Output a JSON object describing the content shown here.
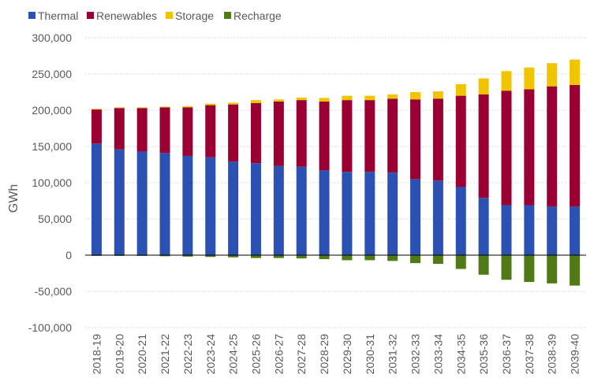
{
  "chart_data": {
    "type": "bar",
    "stacked": true,
    "ylabel": "GWh",
    "ylim": [
      -100000,
      300000
    ],
    "yticks": [
      300000,
      250000,
      200000,
      150000,
      100000,
      50000,
      0,
      -50000,
      -100000
    ],
    "ytick_labels": [
      "300,000",
      "250,000",
      "200,000",
      "150,000",
      "100,000",
      "50,000",
      "0",
      "-50,000",
      "-100,000"
    ],
    "grid": true,
    "legend_position": "top-left",
    "categories": [
      "2018-19",
      "2019-20",
      "2020-21",
      "2021-22",
      "2022-23",
      "2023-24",
      "2024-25",
      "2025-26",
      "2026-27",
      "2027-28",
      "2028-29",
      "2029-30",
      "2030-31",
      "2031-32",
      "2032-33",
      "2033-34",
      "2034-35",
      "2035-36",
      "2036-37",
      "2037-38",
      "2038-39",
      "2039-40"
    ],
    "series": [
      {
        "name": "Thermal",
        "color": "#2b52b3",
        "values": [
          154000,
          146000,
          143000,
          141000,
          137000,
          135000,
          129000,
          127000,
          123000,
          122000,
          117000,
          115000,
          115000,
          114000,
          105000,
          103000,
          94000,
          79000,
          69000,
          69000,
          67000,
          67000
        ]
      },
      {
        "name": "Renewables",
        "color": "#9a0032",
        "values": [
          47000,
          57000,
          60000,
          63000,
          67000,
          72000,
          79000,
          83000,
          89000,
          92000,
          95000,
          99000,
          99000,
          102000,
          110000,
          113000,
          126000,
          143000,
          158000,
          160000,
          166000,
          168000
        ]
      },
      {
        "name": "Storage",
        "color": "#f1c400",
        "values": [
          1000,
          1000,
          1000,
          1000,
          1500,
          2000,
          2500,
          4000,
          3000,
          3500,
          5000,
          6000,
          6000,
          6000,
          10000,
          10000,
          16000,
          22000,
          27000,
          30000,
          32000,
          35000
        ]
      },
      {
        "name": "Recharge",
        "color": "#4f7a16",
        "values": [
          -1000,
          -1000,
          -1000,
          -1500,
          -2000,
          -2500,
          -3000,
          -4000,
          -4000,
          -4500,
          -5500,
          -7000,
          -7000,
          -8000,
          -11000,
          -12000,
          -19000,
          -27000,
          -34000,
          -37000,
          -39000,
          -42000
        ]
      }
    ]
  }
}
